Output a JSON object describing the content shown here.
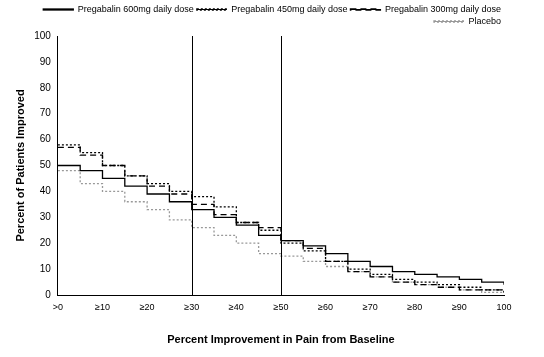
{
  "chart_data": {
    "type": "line",
    "x_label": "Percent Improvement in Pain from Baseline",
    "y_label": "Percent of Patients Improved",
    "x": [
      0,
      5,
      10,
      15,
      20,
      25,
      30,
      35,
      40,
      45,
      50,
      55,
      60,
      65,
      70,
      75,
      80,
      85,
      90,
      95,
      100
    ],
    "series": [
      {
        "name": "Pregabalin 600mg daily dose",
        "color": "#000000",
        "line_style": "solid",
        "values": [
          50,
          48,
          45,
          42,
          39,
          36,
          33,
          30,
          27,
          23,
          21,
          19,
          16,
          13,
          11,
          9,
          8,
          7,
          6,
          5,
          4
        ]
      },
      {
        "name": "Pregabalin 450mg daily dose",
        "color": "#000000",
        "line_style": "dotted",
        "values": [
          58,
          55,
          50,
          46,
          43,
          40,
          38,
          34,
          28,
          25,
          20,
          17,
          13,
          10,
          8,
          6,
          5,
          4,
          3,
          2,
          1
        ]
      },
      {
        "name": "Pregabalin 300mg daily dose",
        "color": "#000000",
        "line_style": "dashed",
        "values": [
          57,
          54,
          50,
          46,
          42,
          39,
          35,
          31,
          28,
          26,
          21,
          18,
          13,
          9,
          7,
          5,
          4,
          3,
          2,
          2,
          1
        ]
      },
      {
        "name": "Placebo",
        "color": "#999999",
        "line_style": "dotted",
        "values": [
          48,
          43,
          40,
          36,
          33,
          29,
          26,
          23,
          20,
          16,
          15,
          13,
          11,
          9,
          7,
          5,
          4,
          3,
          2,
          1,
          1
        ]
      }
    ],
    "reference_lines_x": [
      30,
      50
    ],
    "xlim": [
      0,
      100
    ],
    "xticks": [
      {
        "value": 0,
        "label": ">0"
      },
      {
        "value": 10,
        "label": "≥10"
      },
      {
        "value": 20,
        "label": "≥20"
      },
      {
        "value": 30,
        "label": "≥30"
      },
      {
        "value": 40,
        "label": "≥40"
      },
      {
        "value": 50,
        "label": "≥50"
      },
      {
        "value": 60,
        "label": "≥60"
      },
      {
        "value": 70,
        "label": "≥70"
      },
      {
        "value": 80,
        "label": "≥80"
      },
      {
        "value": 90,
        "label": "≥90"
      },
      100
    ],
    "ylim": [
      0,
      100
    ],
    "yticks": [
      0,
      10,
      20,
      30,
      40,
      50,
      60,
      70,
      80,
      90,
      100
    ],
    "grid": false,
    "legend": "top-right"
  }
}
